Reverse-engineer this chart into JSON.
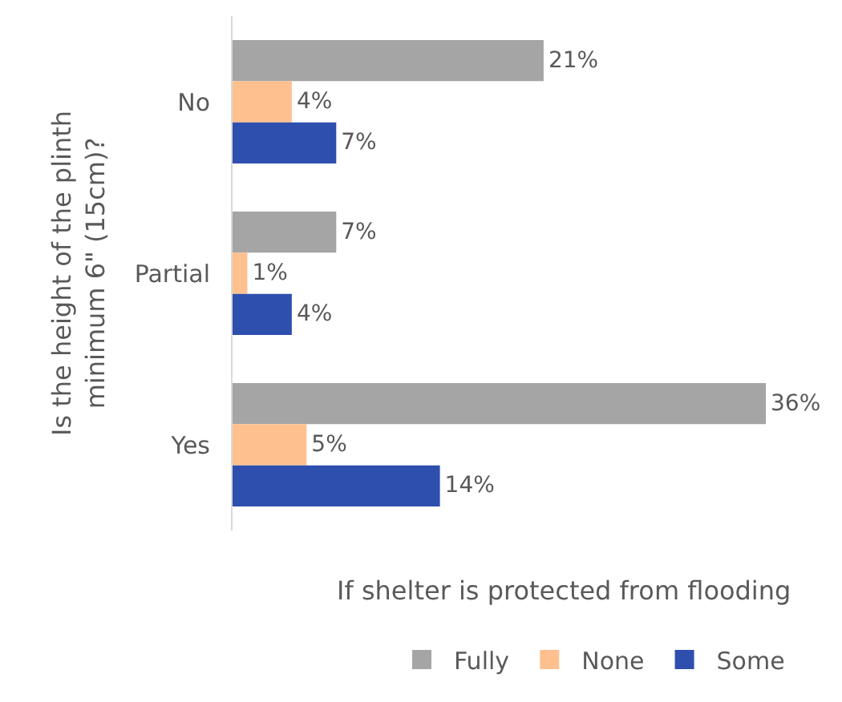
{
  "chart_data": {
    "type": "bar",
    "orientation": "horizontal",
    "xlabel": "If shelter is protected from flooding",
    "ylabel": "Is the height of the plinth minimum 6\" (15cm)?",
    "categories": [
      "No",
      "Partial",
      "Yes"
    ],
    "series": [
      {
        "name": "Fully",
        "color": "#a5a5a5",
        "values": [
          21,
          7,
          36
        ],
        "value_labels": [
          "21%",
          "7%",
          "36%"
        ]
      },
      {
        "name": "None",
        "color": "#ffc08f",
        "values": [
          4,
          1,
          5
        ],
        "value_labels": [
          "4%",
          "1%",
          "5%"
        ]
      },
      {
        "name": "Some",
        "color": "#2e4fad",
        "values": [
          7,
          4,
          14
        ],
        "value_labels": [
          "7%",
          "4%",
          "14%"
        ]
      }
    ],
    "legend": "bottom right",
    "grid": false
  }
}
